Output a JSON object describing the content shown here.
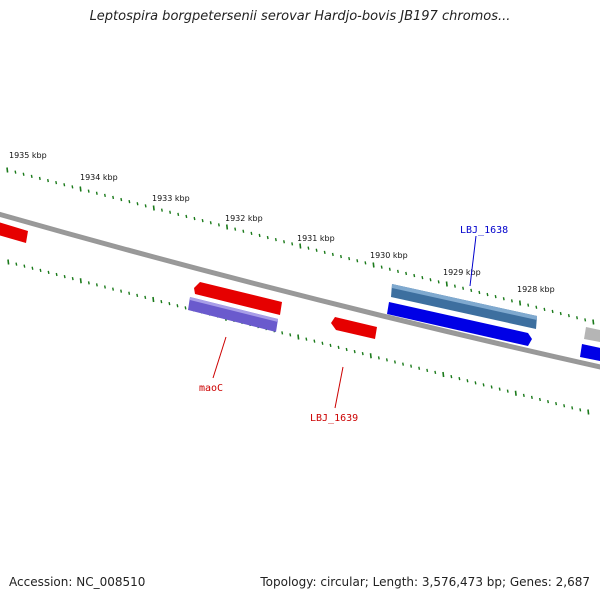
{
  "title": "Leptospira borgpetersenii serovar Hardjo-bovis JB197 chromos...",
  "footer": {
    "accession": "Accession: NC_008510",
    "summary": "Topology: circular; Length: 3,576,473 bp; Genes: 2,687"
  },
  "scale_labels": [
    "1935 kbp",
    "1934 kbp",
    "1933 kbp",
    "1932 kbp",
    "1931 kbp",
    "1930 kbp",
    "1929 kbp",
    "1928 kbp"
  ],
  "gene_labels": {
    "maoC": "maoC",
    "lbj1639": "LBJ_1639",
    "lbj1638": "LBJ_1638"
  },
  "colors": {
    "backbone": "#7a7a7a",
    "ticks": "#1a7a1a",
    "forward_gene": "#e60000",
    "reverse_gene": "#0000e6",
    "steel_gene": "#4a7fb0",
    "purple_gene": "#6a5acd",
    "grey_gene": "#b0b0b0",
    "label_red": "#cc0000",
    "label_blue": "#0000cc"
  }
}
